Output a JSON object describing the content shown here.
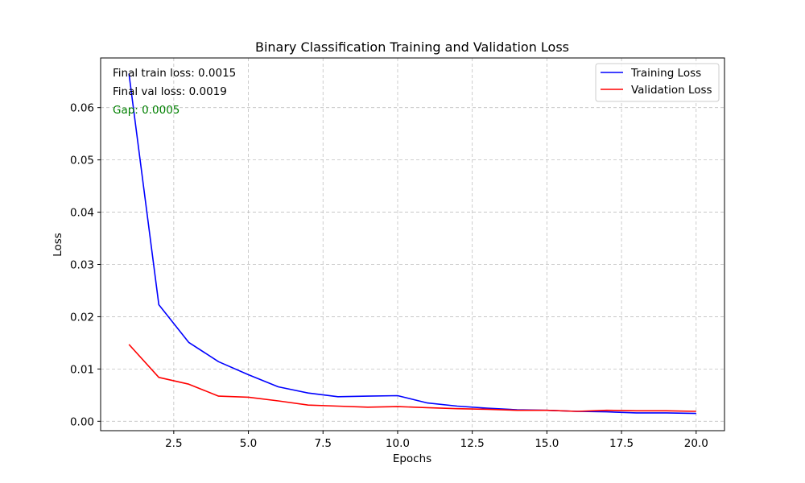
{
  "chart_data": {
    "type": "line",
    "title": "Binary Classification Training and Validation Loss",
    "xlabel": "Epochs",
    "ylabel": "Loss",
    "xlim": [
      0.05,
      20.95
    ],
    "ylim": [
      -0.0018,
      0.0695
    ],
    "xticks": [
      2.5,
      5.0,
      7.5,
      10.0,
      12.5,
      15.0,
      17.5,
      20.0
    ],
    "xtick_labels": [
      "2.5",
      "5.0",
      "7.5",
      "10.0",
      "12.5",
      "15.0",
      "17.5",
      "20.0"
    ],
    "yticks": [
      0.0,
      0.01,
      0.02,
      0.03,
      0.04,
      0.05,
      0.06
    ],
    "ytick_labels": [
      "0.00",
      "0.01",
      "0.02",
      "0.03",
      "0.04",
      "0.05",
      "0.06"
    ],
    "grid": true,
    "legend_position": "top-right",
    "x": [
      1,
      2,
      3,
      4,
      5,
      6,
      7,
      8,
      9,
      10,
      11,
      12,
      13,
      14,
      15,
      16,
      17,
      18,
      19,
      20
    ],
    "series": [
      {
        "name": "Training Loss",
        "color": "#0000ff",
        "values": [
          0.0665,
          0.0223,
          0.0151,
          0.0114,
          0.0089,
          0.0066,
          0.0054,
          0.0047,
          0.0048,
          0.0049,
          0.0035,
          0.0029,
          0.0025,
          0.0022,
          0.0021,
          0.0019,
          0.0018,
          0.0016,
          0.0016,
          0.0015
        ]
      },
      {
        "name": "Validation Loss",
        "color": "#ff0000",
        "values": [
          0.0147,
          0.0084,
          0.0071,
          0.0048,
          0.0046,
          0.0039,
          0.0031,
          0.0029,
          0.0027,
          0.0028,
          0.0026,
          0.0024,
          0.0023,
          0.0021,
          0.0021,
          0.0019,
          0.0021,
          0.002,
          0.002,
          0.0019
        ]
      }
    ],
    "annotations": [
      {
        "text": "Final train loss: 0.0015",
        "color": "#000000"
      },
      {
        "text": "Final val loss: 0.0019",
        "color": "#000000"
      },
      {
        "text": "Gap: 0.0005",
        "color": "#008000"
      }
    ]
  }
}
